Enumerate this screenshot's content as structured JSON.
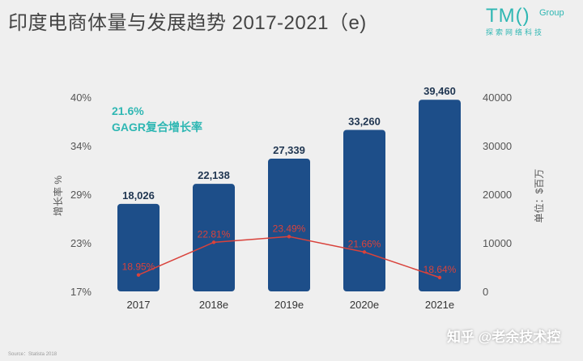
{
  "header": {
    "title": "印度电商体量与发展趋势 2017-2021（e)",
    "logo_main": "TM()",
    "logo_group": "Group",
    "logo_sub": "探索网络科技"
  },
  "footer": {
    "brand": "知乎 @老余技术控",
    "source": "Source：Statista 2018"
  },
  "chart_data": {
    "type": "bar",
    "categories": [
      "2017",
      "2018e",
      "2019e",
      "2020e",
      "2021e"
    ],
    "bar_series": {
      "values": [
        18026,
        22138,
        27339,
        33260,
        39460
      ]
    },
    "bar_labels": [
      "18,026",
      "22,138",
      "27,339",
      "33,260",
      "39,460"
    ],
    "line_series": {
      "values": [
        18.95,
        22.81,
        23.49,
        21.66,
        18.64
      ]
    },
    "line_labels": [
      "18.95%",
      "22.81%",
      "23.49%",
      "21.66%",
      "18.64%"
    ],
    "left_axis": {
      "label": "增长率 %",
      "ticks": [
        "40%",
        "34%",
        "29%",
        "23%",
        "17%"
      ],
      "range": [
        17,
        40
      ]
    },
    "right_axis": {
      "label": "单位：$百万",
      "ticks": [
        "40000",
        "30000",
        "20000",
        "10000",
        "0"
      ],
      "range": [
        0,
        40000
      ]
    },
    "annotation": {
      "value": "21.6%",
      "label": "GAGR复合增长率"
    },
    "colors": {
      "bar": "#1d4e89",
      "line": "#d9423b",
      "annotation": "#2fb7b3",
      "axis_text": "#555555"
    }
  }
}
